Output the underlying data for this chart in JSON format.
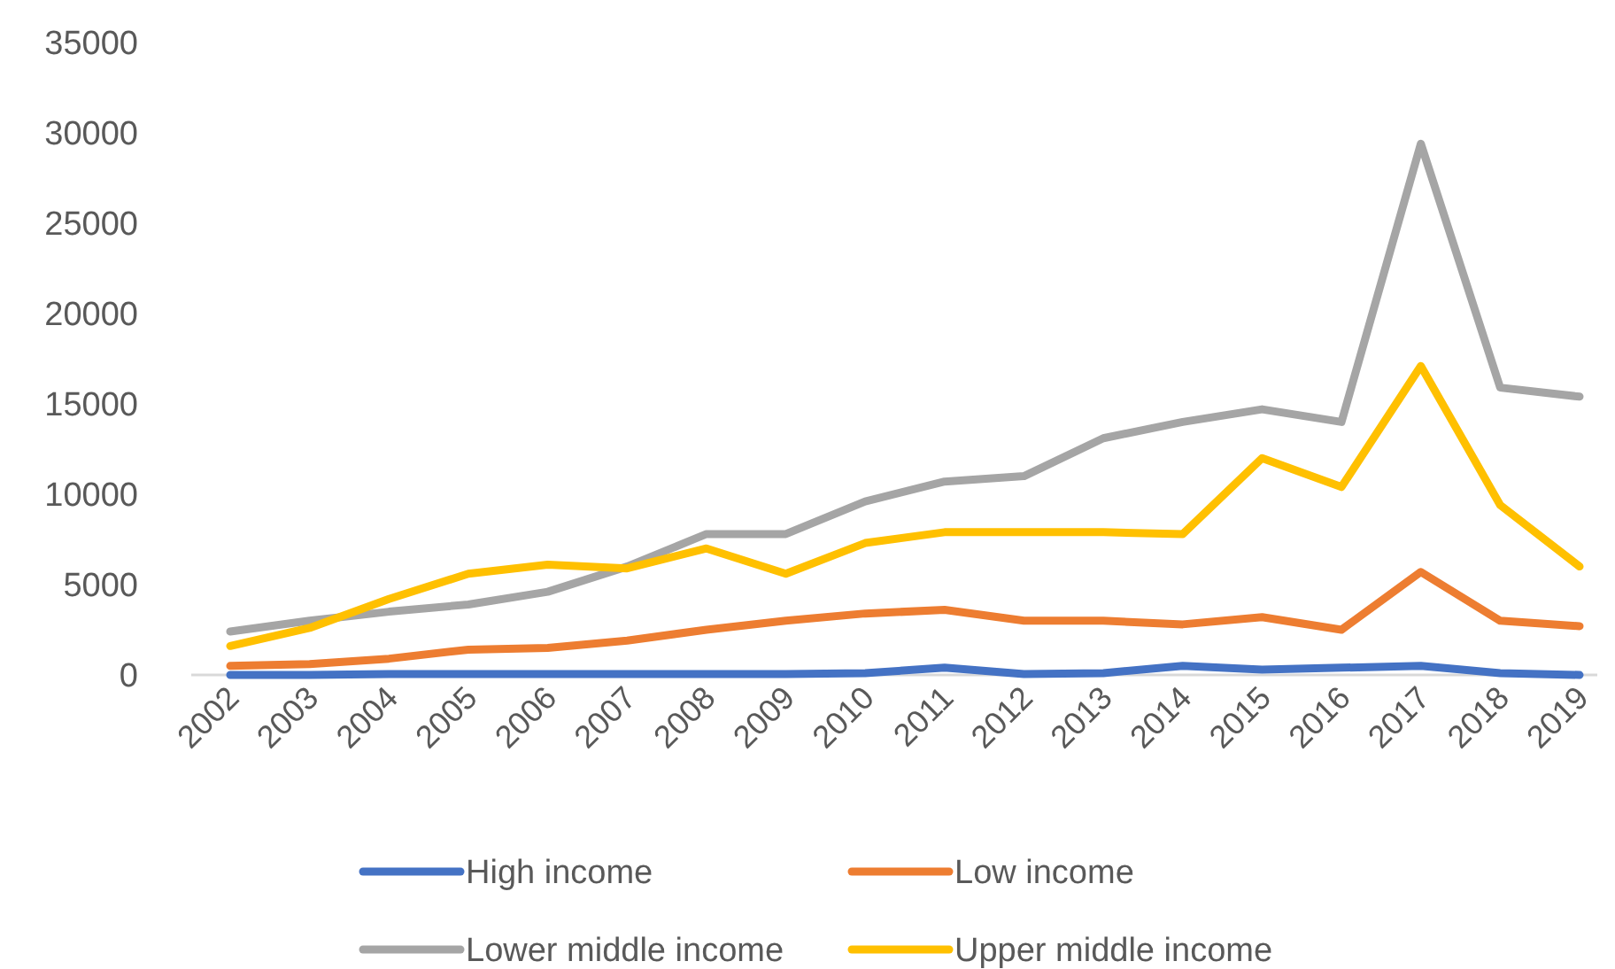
{
  "chart_data": {
    "type": "line",
    "categories": [
      "2002",
      "2003",
      "2004",
      "2005",
      "2006",
      "2007",
      "2008",
      "2009",
      "2010",
      "2011",
      "2012",
      "2013",
      "2014",
      "2015",
      "2016",
      "2017",
      "2018",
      "2019"
    ],
    "series": [
      {
        "name": "High income",
        "color": "#4472c4",
        "values": [
          0,
          0,
          50,
          50,
          50,
          50,
          50,
          50,
          100,
          400,
          50,
          100,
          500,
          300,
          400,
          500,
          100,
          0
        ]
      },
      {
        "name": "Low income",
        "color": "#ed7d31",
        "values": [
          500,
          600,
          900,
          1400,
          1500,
          1900,
          2500,
          3000,
          3400,
          3600,
          3000,
          3000,
          2800,
          3200,
          2500,
          5700,
          3000,
          2700
        ]
      },
      {
        "name": "Lower middle income",
        "color": "#a5a5a5",
        "values": [
          2400,
          3000,
          3500,
          3900,
          4600,
          6000,
          7800,
          7800,
          9600,
          10700,
          11000,
          13100,
          14000,
          14700,
          14000,
          29400,
          15900,
          15400
        ]
      },
      {
        "name": "Upper middle income",
        "color": "#ffc000",
        "values": [
          1600,
          2600,
          4200,
          5600,
          6100,
          5900,
          7000,
          5600,
          7300,
          7900,
          7900,
          7900,
          7800,
          12000,
          10400,
          17100,
          9400,
          6000
        ]
      }
    ],
    "ylim": [
      0,
      35000
    ],
    "yticks": [
      0,
      5000,
      10000,
      15000,
      20000,
      25000,
      30000,
      35000
    ],
    "grid": false,
    "legend": "bottom"
  }
}
